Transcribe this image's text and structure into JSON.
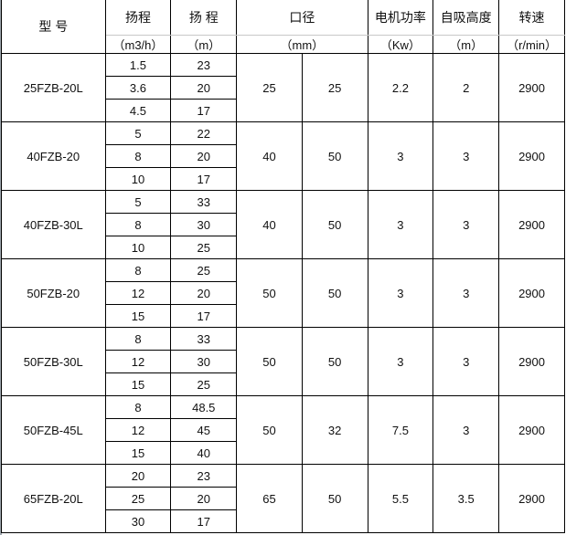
{
  "header": {
    "model": "型 号",
    "flow": "扬程",
    "flow_unit": "（m3/h）",
    "head": "扬 程",
    "head_unit": "（m）",
    "port": "口径",
    "port_unit": "（mm）",
    "power": "电机功率",
    "power_unit": "（Kw）",
    "suction": "自吸高度",
    "suction_unit": "（m）",
    "speed": "转速",
    "speed_unit": "（r/min）"
  },
  "rows": [
    {
      "model": "25FZB-20L",
      "flow": [
        "1.5",
        "3.6",
        "4.5"
      ],
      "head": [
        "23",
        "20",
        "17"
      ],
      "inlet": "25",
      "outlet": "25",
      "power": "2.2",
      "suction": "2",
      "speed": "2900"
    },
    {
      "model": "40FZB-20",
      "flow": [
        "5",
        "8",
        "10"
      ],
      "head": [
        "22",
        "20",
        "17"
      ],
      "inlet": "40",
      "outlet": "50",
      "power": "3",
      "suction": "3",
      "speed": "2900"
    },
    {
      "model": "40FZB-30L",
      "flow": [
        "5",
        "8",
        "10"
      ],
      "head": [
        "33",
        "30",
        "25"
      ],
      "inlet": "40",
      "outlet": "50",
      "power": "3",
      "suction": "3",
      "speed": "2900"
    },
    {
      "model": "50FZB-20",
      "flow": [
        "8",
        "12",
        "15"
      ],
      "head": [
        "25",
        "20",
        "17"
      ],
      "inlet": "50",
      "outlet": "50",
      "power": "3",
      "suction": "3",
      "speed": "2900"
    },
    {
      "model": "50FZB-30L",
      "flow": [
        "8",
        "12",
        "15"
      ],
      "head": [
        "33",
        "30",
        "25"
      ],
      "inlet": "50",
      "outlet": "50",
      "power": "3",
      "suction": "3",
      "speed": "2900"
    },
    {
      "model": "50FZB-45L",
      "flow": [
        "8",
        "12",
        "15"
      ],
      "head": [
        "48.5",
        "45",
        "40"
      ],
      "inlet": "50",
      "outlet": "32",
      "power": "7.5",
      "suction": "3",
      "speed": "2900"
    },
    {
      "model": "65FZB-20L",
      "flow": [
        "20",
        "25",
        "30"
      ],
      "head": [
        "23",
        "20",
        "17"
      ],
      "inlet": "65",
      "outlet": "50",
      "power": "5.5",
      "suction": "3.5",
      "speed": "2900"
    }
  ]
}
